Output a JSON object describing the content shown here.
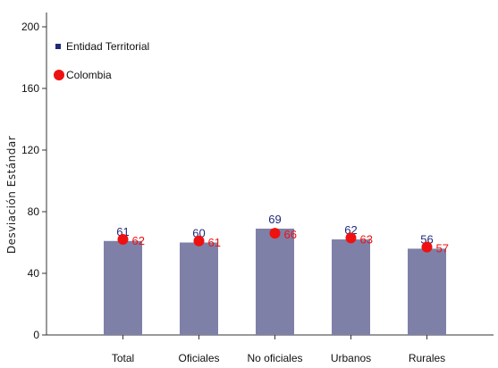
{
  "chart_data": {
    "type": "bar",
    "ylabel": "Desviación Estándar",
    "xlabel": "",
    "ylim": [
      0,
      200
    ],
    "yticks": [
      0,
      40,
      80,
      120,
      160,
      200
    ],
    "grid": false,
    "legend_position": "top-left",
    "categories": [
      "Total",
      "Oficiales",
      "No oficiales",
      "Urbanos",
      "Rurales"
    ],
    "series": [
      {
        "name": "Entidad Territorial",
        "kind": "bar",
        "color": "#7f80a8",
        "label_color": "#1f2a78",
        "values": [
          61,
          60,
          69,
          62,
          56
        ]
      },
      {
        "name": "Colombia",
        "kind": "point",
        "color": "#ee1111",
        "label_color": "#ee1111",
        "values": [
          62,
          61,
          66,
          63,
          57
        ]
      }
    ]
  }
}
